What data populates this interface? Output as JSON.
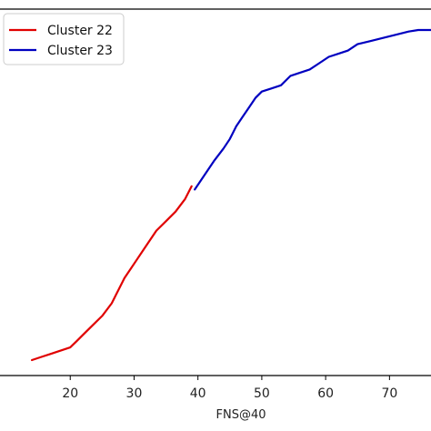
{
  "chart_data": {
    "type": "line",
    "title": "",
    "xlabel": "FNS@40",
    "ylabel": "",
    "xlim": [
      9,
      76.5
    ],
    "ylim": [
      0,
      1
    ],
    "x_ticks": [
      20,
      30,
      40,
      50,
      60,
      70
    ],
    "grid": false,
    "legend_placement": "top-left",
    "series": [
      {
        "name": "Cluster 22",
        "color": "#e00000",
        "points": [
          [
            14.0,
            0.0
          ],
          [
            15.5,
            0.01
          ],
          [
            17.0,
            0.02
          ],
          [
            18.5,
            0.03
          ],
          [
            20.0,
            0.04
          ],
          [
            21.0,
            0.06
          ],
          [
            22.0,
            0.08
          ],
          [
            23.5,
            0.11
          ],
          [
            25.0,
            0.14
          ],
          [
            26.5,
            0.18
          ],
          [
            27.5,
            0.22
          ],
          [
            28.5,
            0.26
          ],
          [
            29.5,
            0.29
          ],
          [
            30.5,
            0.32
          ],
          [
            31.5,
            0.35
          ],
          [
            32.5,
            0.38
          ],
          [
            33.5,
            0.41
          ],
          [
            35.0,
            0.44
          ],
          [
            36.5,
            0.47
          ],
          [
            38.0,
            0.51
          ],
          [
            39.0,
            0.55
          ]
        ]
      },
      {
        "name": "Cluster 23",
        "color": "#0000c0",
        "points": [
          [
            39.5,
            0.54
          ],
          [
            40.5,
            0.57
          ],
          [
            41.5,
            0.6
          ],
          [
            42.5,
            0.63
          ],
          [
            44.0,
            0.67
          ],
          [
            45.0,
            0.7
          ],
          [
            46.0,
            0.74
          ],
          [
            47.0,
            0.77
          ],
          [
            48.0,
            0.8
          ],
          [
            49.0,
            0.83
          ],
          [
            50.0,
            0.85
          ],
          [
            51.5,
            0.86
          ],
          [
            53.0,
            0.87
          ],
          [
            54.5,
            0.9
          ],
          [
            56.0,
            0.91
          ],
          [
            57.5,
            0.92
          ],
          [
            59.0,
            0.94
          ],
          [
            60.5,
            0.96
          ],
          [
            62.0,
            0.97
          ],
          [
            63.5,
            0.98
          ],
          [
            65.0,
            1.0
          ],
          [
            67.0,
            1.01
          ],
          [
            69.0,
            1.02
          ],
          [
            71.0,
            1.03
          ],
          [
            73.0,
            1.04
          ],
          [
            74.5,
            1.045
          ],
          [
            76.5,
            1.045
          ]
        ]
      }
    ]
  }
}
